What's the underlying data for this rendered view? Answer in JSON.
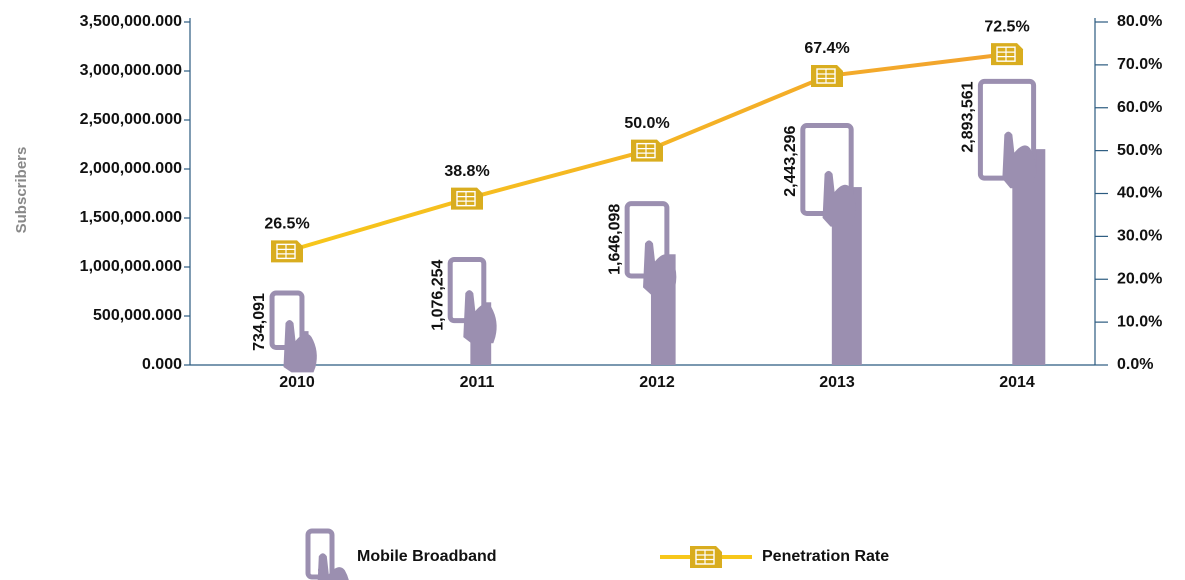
{
  "chart_data": {
    "type": "bar-line",
    "y_label": "Subscribers",
    "categories": [
      "2010",
      "2011",
      "2012",
      "2013",
      "2014"
    ],
    "series": [
      {
        "name": "Mobile Broadband",
        "color": "#9b8fb0",
        "type": "bar",
        "values": [
          734091,
          1076254,
          1646098,
          2443296,
          2893561
        ],
        "value_labels": [
          "734,091",
          "1,076,254",
          "1,646,098",
          "2,443,296",
          "2,893,561"
        ]
      },
      {
        "name": "Penetration Rate",
        "color": "#f7c71a",
        "type": "line",
        "axis": "y2",
        "values": [
          26.5,
          38.8,
          50.0,
          67.4,
          72.5
        ],
        "value_labels": [
          "26.5%",
          "38.8%",
          "50.0%",
          "67.4%",
          "72.5%"
        ]
      }
    ],
    "ylim": [
      0,
      3500000
    ],
    "yticks": [
      {
        "value": 0,
        "label": "0.000"
      },
      {
        "value": 500000,
        "label": "500,000.000"
      },
      {
        "value": 1000000,
        "label": "1,000,000.000"
      },
      {
        "value": 1500000,
        "label": "1,500,000.000"
      },
      {
        "value": 2000000,
        "label": "2,000,000.000"
      },
      {
        "value": 2500000,
        "label": "2,500,000.000"
      },
      {
        "value": 3000000,
        "label": "3,000,000.000"
      },
      {
        "value": 3500000,
        "label": "3,500,000.000"
      }
    ],
    "y2lim": [
      0,
      80
    ],
    "y2ticks": [
      {
        "value": 0,
        "label": "0.0%"
      },
      {
        "value": 10,
        "label": "10.0%"
      },
      {
        "value": 20,
        "label": "20.0%"
      },
      {
        "value": 30,
        "label": "30.0%"
      },
      {
        "value": 40,
        "label": "40.0%"
      },
      {
        "value": 50,
        "label": "50.0%"
      },
      {
        "value": 60,
        "label": "60.0%"
      },
      {
        "value": 70,
        "label": "70.0%"
      },
      {
        "value": 80,
        "label": "80.0%"
      }
    ],
    "legend": "bottom"
  }
}
